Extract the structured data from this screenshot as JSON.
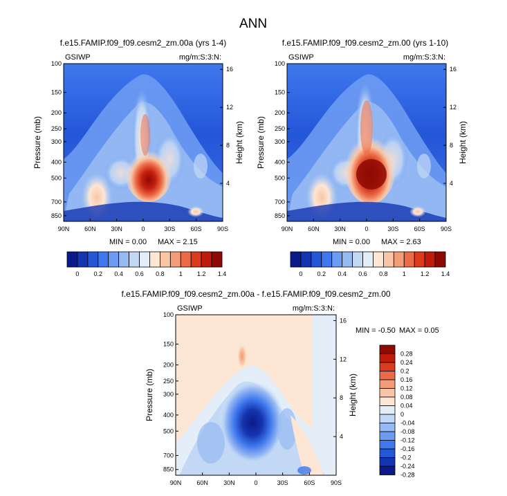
{
  "page_title": "ANN",
  "chart_data": [
    {
      "type": "heatmap",
      "title": "f.e15.FAMIP.f09_f09.cesm2_zm.00a (yrs 1-4)",
      "left_label": "GSIWP",
      "right_label": "mg/m:S:3:N:",
      "ylabel": "Pressure (mb)",
      "ylabel_right": "Height (km)",
      "x_ticks": [
        "90N",
        "60N",
        "30N",
        "0",
        "30S",
        "60S",
        "90S"
      ],
      "y_ticks": [
        "100",
        "150",
        "200",
        "250",
        "300",
        "400",
        "500",
        "700",
        "850"
      ],
      "y_ticks_right": [
        "16",
        "12",
        "8",
        "4"
      ],
      "min_text": "MIN =  0.00",
      "max_text": "MAX =  2.15",
      "levels": [
        "0",
        "0.2",
        "0.4",
        "0.6",
        "0.8",
        "1",
        "1.2",
        "1.4"
      ]
    },
    {
      "type": "heatmap",
      "title": "f.e15.FAMIP.f09_f09.cesm2_zm.00 (yrs 1-10)",
      "left_label": "GSIWP",
      "right_label": "mg/m:S:3:N:",
      "ylabel": "Pressure (mb)",
      "ylabel_right": "Height (km)",
      "x_ticks": [
        "90N",
        "60N",
        "30N",
        "0",
        "30S",
        "60S",
        "90S"
      ],
      "y_ticks": [
        "100",
        "150",
        "200",
        "250",
        "300",
        "400",
        "500",
        "700",
        "850"
      ],
      "y_ticks_right": [
        "16",
        "12",
        "8",
        "4"
      ],
      "min_text": "MIN =  0.00",
      "max_text": "MAX =  2.63",
      "levels": [
        "0",
        "0.2",
        "0.4",
        "0.6",
        "0.8",
        "1",
        "1.2",
        "1.4"
      ]
    },
    {
      "type": "heatmap",
      "title": "f.e15.FAMIP.f09_f09.cesm2_zm.00a - f.e15.FAMIP.f09_f09.cesm2_zm.00",
      "left_label": "GSIWP",
      "right_label": "mg/m:S:3:N:",
      "ylabel": "Pressure (mb)",
      "ylabel_right": "Height (km)",
      "x_ticks": [
        "90N",
        "60N",
        "30N",
        "0",
        "30S",
        "60S",
        "90S"
      ],
      "y_ticks": [
        "100",
        "150",
        "200",
        "250",
        "300",
        "400",
        "500",
        "700",
        "850"
      ],
      "y_ticks_right": [
        "16",
        "12",
        "8",
        "4"
      ],
      "min_text": "MIN = -0.50",
      "max_text": "MAX =  0.05",
      "levels": [
        "0.28",
        "0.24",
        "0.2",
        "0.16",
        "0.12",
        "0.08",
        "0.04",
        "0",
        "-0.04",
        "-0.08",
        "-0.12",
        "-0.16",
        "-0.2",
        "-0.24",
        "-0.28"
      ]
    }
  ],
  "colors": {
    "abs_scale": [
      "#0b1a8a",
      "#1535b0",
      "#2456d8",
      "#3f78ee",
      "#6b9bf2",
      "#97baf2",
      "#c3d8f5",
      "#e3eef8",
      "#fde6d4",
      "#f8c6a6",
      "#f39c78",
      "#ec6a46",
      "#dd3a1c",
      "#bf1c0c",
      "#8e0a04"
    ],
    "diff_scale": [
      "#8e0a04",
      "#bf1c0c",
      "#dd3a1c",
      "#ec6a46",
      "#f39c78",
      "#f8c6a6",
      "#fde6d4",
      "#e3eef8",
      "#c3d8f5",
      "#97baf2",
      "#6b9bf2",
      "#3f78ee",
      "#2456d8",
      "#1535b0",
      "#0b1a8a"
    ]
  }
}
